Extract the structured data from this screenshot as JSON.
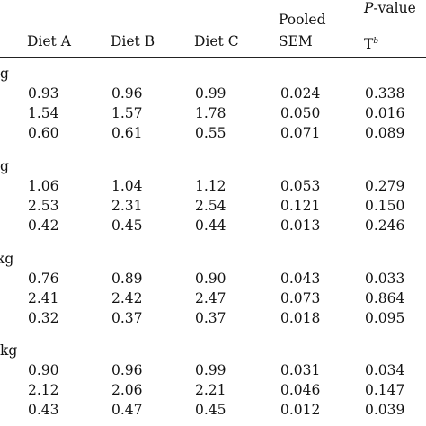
{
  "header": {
    "pooled": "Pooled",
    "sem": "SEM",
    "pvalue_italic": "P",
    "pvalue_rest": "-value",
    "diet_a": "Diet A",
    "diet_b": "Diet B",
    "diet_c": "Diet C",
    "t": "T",
    "t_sup": "b"
  },
  "sections": [
    {
      "label": "g",
      "rows": [
        [
          "0.93",
          "0.96",
          "0.99",
          "0.024",
          "0.338"
        ],
        [
          "1.54",
          "1.57",
          "1.78",
          "0.050",
          "0.016"
        ],
        [
          "0.60",
          "0.61",
          "0.55",
          "0.071",
          "0.089"
        ]
      ]
    },
    {
      "label": "g",
      "rows": [
        [
          "1.06",
          "1.04",
          "1.12",
          "0.053",
          "0.279"
        ],
        [
          "2.53",
          "2.31",
          "2.54",
          "0.121",
          "0.150"
        ],
        [
          "0.42",
          "0.45",
          "0.44",
          "0.013",
          "0.246"
        ]
      ]
    },
    {
      "label": "kg",
      "rows": [
        [
          "0.76",
          "0.89",
          "0.90",
          "0.043",
          "0.033"
        ],
        [
          "2.41",
          "2.42",
          "2.47",
          "0.073",
          "0.864"
        ],
        [
          "0.32",
          "0.37",
          "0.37",
          "0.018",
          "0.095"
        ]
      ]
    },
    {
      "label": "kg",
      "rows": [
        [
          "0.90",
          "0.96",
          "0.99",
          "0.031",
          "0.034"
        ],
        [
          "2.12",
          "2.06",
          "2.21",
          "0.046",
          "0.147"
        ],
        [
          "0.43",
          "0.47",
          "0.45",
          "0.012",
          "0.039"
        ]
      ]
    }
  ]
}
